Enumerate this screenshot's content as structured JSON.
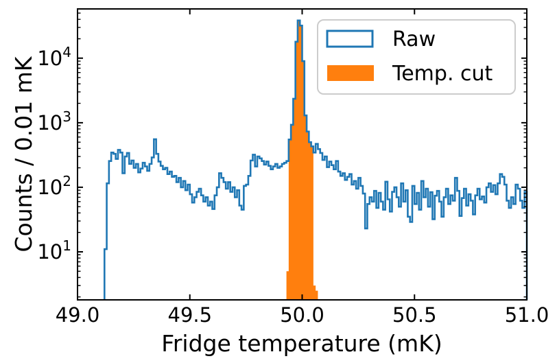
{
  "figure": {
    "xlabel": "Fridge temperature (mK)",
    "ylabel": "Counts / 0.01 mK"
  },
  "legend": {
    "items": [
      {
        "label": "Raw",
        "style": "outline",
        "color": "#1f77b4"
      },
      {
        "label": "Temp. cut",
        "style": "filled",
        "color": "#ff7f0e"
      }
    ]
  },
  "chart_data": {
    "type": "histogram",
    "title": "",
    "xlabel": "Fridge temperature (mK)",
    "ylabel": "Counts / 0.01 mK",
    "x_range": [
      49.0,
      51.0
    ],
    "y_scale": "log",
    "y_range": [
      1.8,
      58000
    ],
    "bin_start": 49.0,
    "bin_width": 0.01,
    "grid": false,
    "legend_position": "upper right",
    "x_ticks": [
      49.0,
      49.5,
      50.0,
      50.5,
      51.0
    ],
    "x_tick_labels": [
      "49.0",
      "49.5",
      "50.0",
      "50.5",
      "51.0"
    ],
    "y_major_ticks": [
      10,
      100,
      1000,
      10000
    ],
    "y_tick_exponents": [
      1,
      2,
      3,
      4
    ],
    "series": [
      {
        "name": "Raw",
        "style": "step-outline",
        "color": "#1f77b4",
        "bin_offset": 12,
        "values": [
          11,
          115,
          255,
          345,
          330,
          275,
          380,
          345,
          165,
          300,
          340,
          230,
          260,
          200,
          230,
          170,
          195,
          240,
          210,
          180,
          230,
          290,
          555,
          330,
          250,
          215,
          190,
          200,
          160,
          175,
          145,
          150,
          120,
          140,
          100,
          125,
          90,
          110,
          78,
          58,
          70,
          85,
          95,
          75,
          60,
          70,
          52,
          60,
          46,
          75,
          100,
          165,
          140,
          120,
          95,
          120,
          85,
          100,
          70,
          90,
          52,
          45,
          105,
          110,
          150,
          260,
          320,
          210,
          300,
          280,
          255,
          225,
          250,
          215,
          190,
          210,
          230,
          200,
          210,
          230,
          240,
          255,
          550,
          930,
          2350,
          18000,
          38500,
          32000,
          9000,
          1300,
          730,
          500,
          430,
          345,
          470,
          390,
          340,
          265,
          300,
          205,
          250,
          220,
          190,
          255,
          175,
          150,
          165,
          130,
          145,
          160,
          110,
          125,
          95,
          140,
          105,
          80,
          23,
          55,
          70,
          60,
          88,
          48,
          82,
          60,
          45,
          122,
          65,
          42,
          85,
          100,
          70,
          50,
          115,
          60,
          90,
          35,
          29,
          105,
          55,
          82,
          45,
          125,
          70,
          95,
          50,
          84,
          32,
          74,
          88,
          60,
          35,
          70,
          95,
          55,
          75,
          62,
          140,
          88,
          36,
          68,
          95,
          52,
          78,
          62,
          38,
          75,
          95,
          65,
          72,
          58,
          100,
          115,
          85,
          108,
          78,
          115,
          160,
          145,
          110,
          62,
          48,
          70,
          55,
          110,
          95,
          62,
          48,
          85
        ]
      },
      {
        "name": "Temp. cut",
        "style": "filled",
        "color": "#ff7f0e",
        "bin_offset": 93,
        "values": [
          5,
          550,
          930,
          2350,
          18000,
          38500,
          32000,
          9000,
          1300,
          730,
          500,
          430,
          3,
          2.5
        ]
      }
    ]
  }
}
